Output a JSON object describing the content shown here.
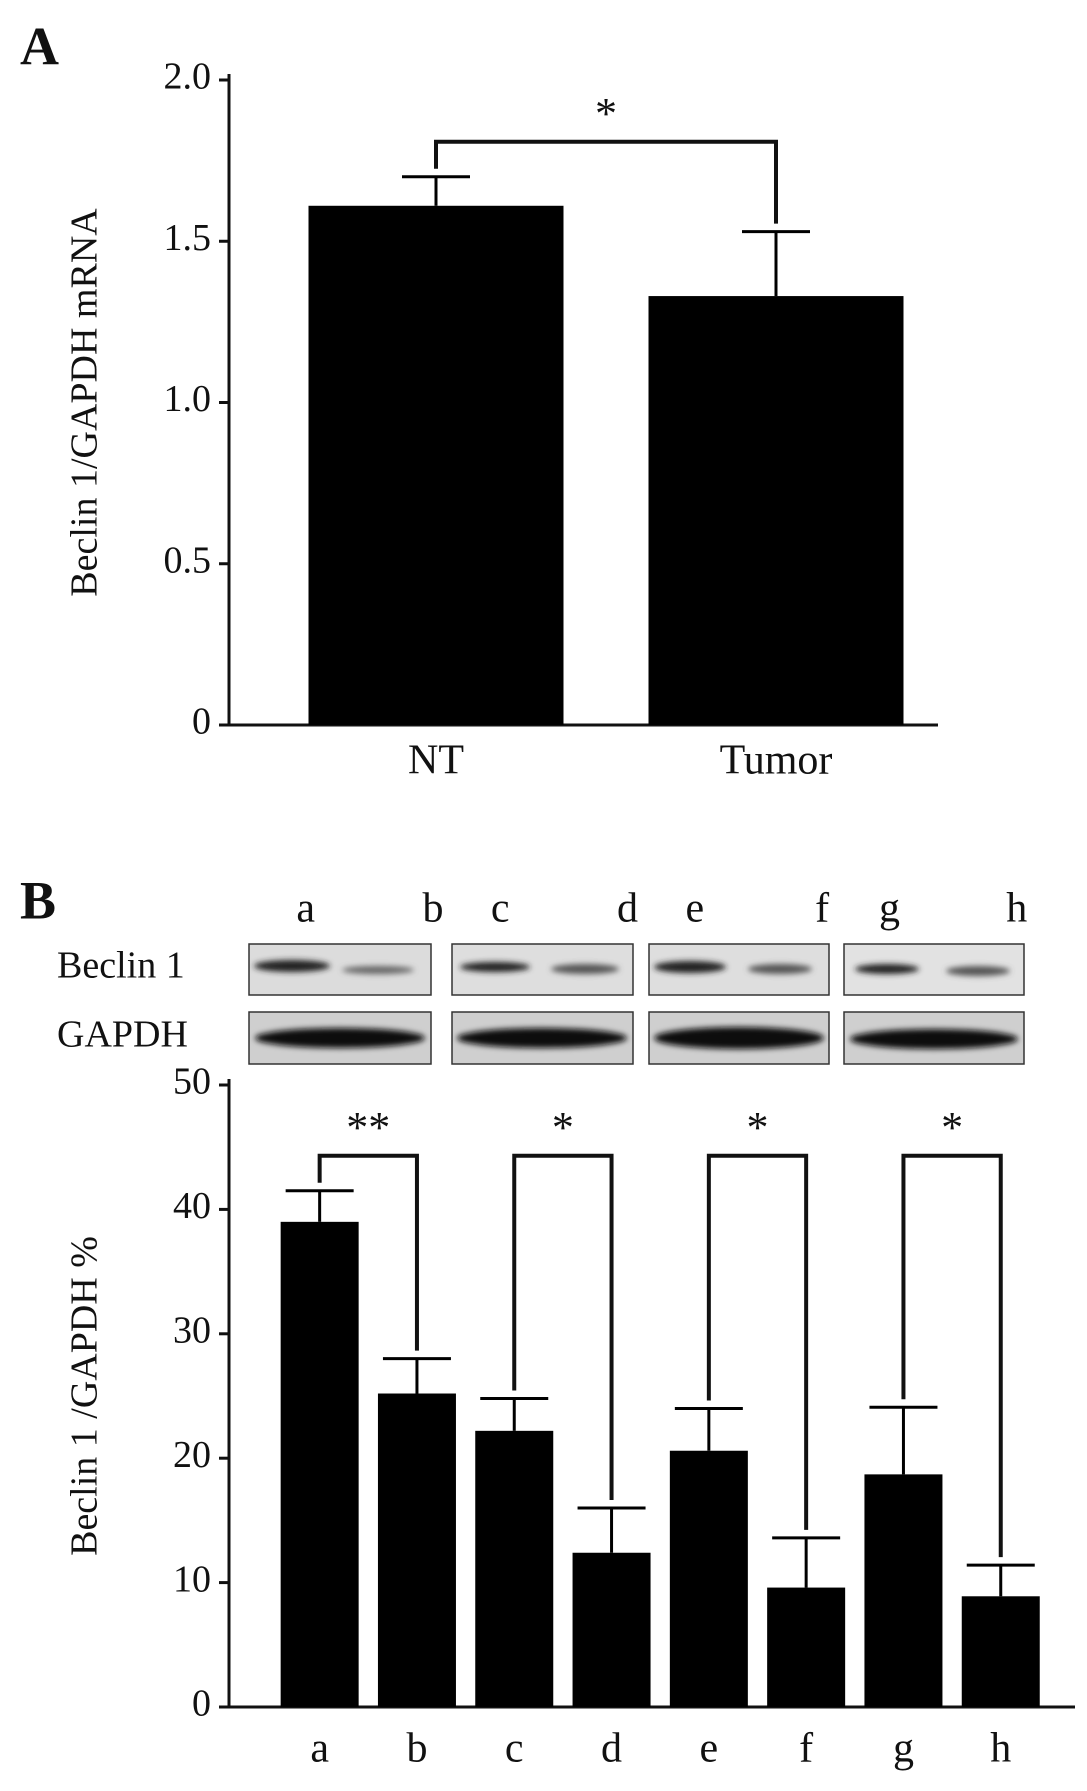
{
  "chart_data": [
    {
      "type": "bar",
      "label": "A",
      "y_label": "Beclin 1/GAPDH mRNA",
      "categories": [
        "NT",
        "Tumor"
      ],
      "values": [
        1.61,
        1.33
      ],
      "errors": [
        0.09,
        0.2
      ],
      "color": "#000000",
      "ylim": [
        0,
        2.0
      ],
      "yticks": [
        0,
        {
          "value": 0.5,
          "label": "0.5"
        },
        {
          "value": 1.0,
          "label": "1.0"
        },
        {
          "value": 1.5,
          "label": "1.5"
        },
        {
          "value": 2.0,
          "label": "2.0"
        }
      ],
      "annotations": [
        "*"
      ]
    },
    {
      "type": "bar",
      "label": "B",
      "y_label": "Beclin 1 /GAPDH %",
      "blot_rows": [
        "Beclin 1",
        "GAPDH"
      ],
      "categories": [
        "a",
        "b",
        "c",
        "d",
        "e",
        "f",
        "g",
        "h"
      ],
      "values": [
        39.0,
        25.2,
        22.2,
        12.4,
        20.6,
        9.6,
        18.7,
        8.9
      ],
      "errors": [
        2.5,
        2.8,
        2.6,
        3.6,
        3.4,
        4.0,
        5.4,
        2.5
      ],
      "color": "#000000",
      "ylim": [
        0,
        50
      ],
      "yticks": [
        0,
        10,
        20,
        30,
        40,
        50
      ],
      "annotations": [
        "**",
        "*",
        "*",
        "*"
      ]
    }
  ]
}
